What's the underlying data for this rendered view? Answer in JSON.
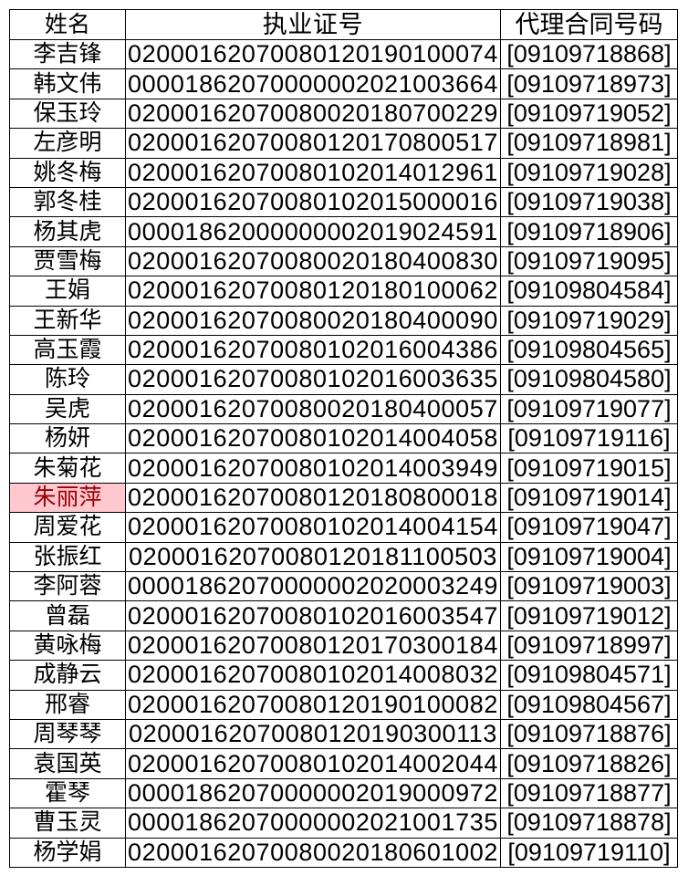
{
  "headers": [
    "姓名",
    "执业证号",
    "代理合同号码"
  ],
  "highlight_color": "#ffc7ce",
  "highlight_text_color": "#9c0006",
  "rows": [
    {
      "name": "李吉锋",
      "license": "02000162070080120190100074",
      "contract": "[09109718868]"
    },
    {
      "name": "韩文伟",
      "license": "00001862070000002021003664",
      "contract": "[09109718973]"
    },
    {
      "name": "保玉玲",
      "license": "02000162070080020180700229",
      "contract": "[09109719052]"
    },
    {
      "name": "左彦明",
      "license": "02000162070080120170800517",
      "contract": "[09109718981]"
    },
    {
      "name": "姚冬梅",
      "license": "02000162070080102014012961",
      "contract": "[09109719028]"
    },
    {
      "name": "郭冬桂",
      "license": "02000162070080102015000016",
      "contract": "[09109719038]"
    },
    {
      "name": "杨其虎",
      "license": "00001862000000002019024591",
      "contract": "[09109718906]"
    },
    {
      "name": "贾雪梅",
      "license": "02000162070080020180400830",
      "contract": "[09109719095]"
    },
    {
      "name": "王娟",
      "license": "02000162070080120180100062",
      "contract": "[09109804584]"
    },
    {
      "name": "王新华",
      "license": "02000162070080020180400090",
      "contract": "[09109719029]"
    },
    {
      "name": "高玉霞",
      "license": "02000162070080102016004386",
      "contract": "[09109804565]"
    },
    {
      "name": "陈玲",
      "license": "02000162070080102016003635",
      "contract": "[09109804580]"
    },
    {
      "name": "吴虎",
      "license": "02000162070080020180400057",
      "contract": "[09109719077]"
    },
    {
      "name": "杨妍",
      "license": "02000162070080102014004058",
      "contract": "[09109719116]"
    },
    {
      "name": "朱菊花",
      "license": "02000162070080102014003949",
      "contract": "[09109719015]"
    },
    {
      "name": "朱丽萍",
      "license": "02000162070080120180800018",
      "contract": "[09109719014]",
      "highlighted": true
    },
    {
      "name": "周爱花",
      "license": "02000162070080102014004154",
      "contract": "[09109719047]"
    },
    {
      "name": "张振红",
      "license": "02000162070080120181100503",
      "contract": "[09109719004]"
    },
    {
      "name": "李阿蓉",
      "license": "00001862070000002020003249",
      "contract": "[09109719003]"
    },
    {
      "name": "曾磊",
      "license": "02000162070080102016003547",
      "contract": "[09109719012]"
    },
    {
      "name": "黄咏梅",
      "license": "02000162070080120170300184",
      "contract": "[09109718997]"
    },
    {
      "name": "成静云",
      "license": "02000162070080102014008032",
      "contract": "[09109804571]"
    },
    {
      "name": "邢睿",
      "license": "02000162070080120190100082",
      "contract": "[09109804567]"
    },
    {
      "name": "周琴琴",
      "license": "02000162070080120190300113",
      "contract": "[09109718876]"
    },
    {
      "name": "袁国英",
      "license": "02000162070080102014002044",
      "contract": "[09109718826]"
    },
    {
      "name": "霍琴",
      "license": "00001862070000002019000972",
      "contract": "[09109718877]"
    },
    {
      "name": "曹玉灵",
      "license": "00001862070000002021001735",
      "contract": "[09109718878]"
    },
    {
      "name": "杨学娟",
      "license": "02000162070080020180601002",
      "contract": "[09109719110]"
    }
  ]
}
